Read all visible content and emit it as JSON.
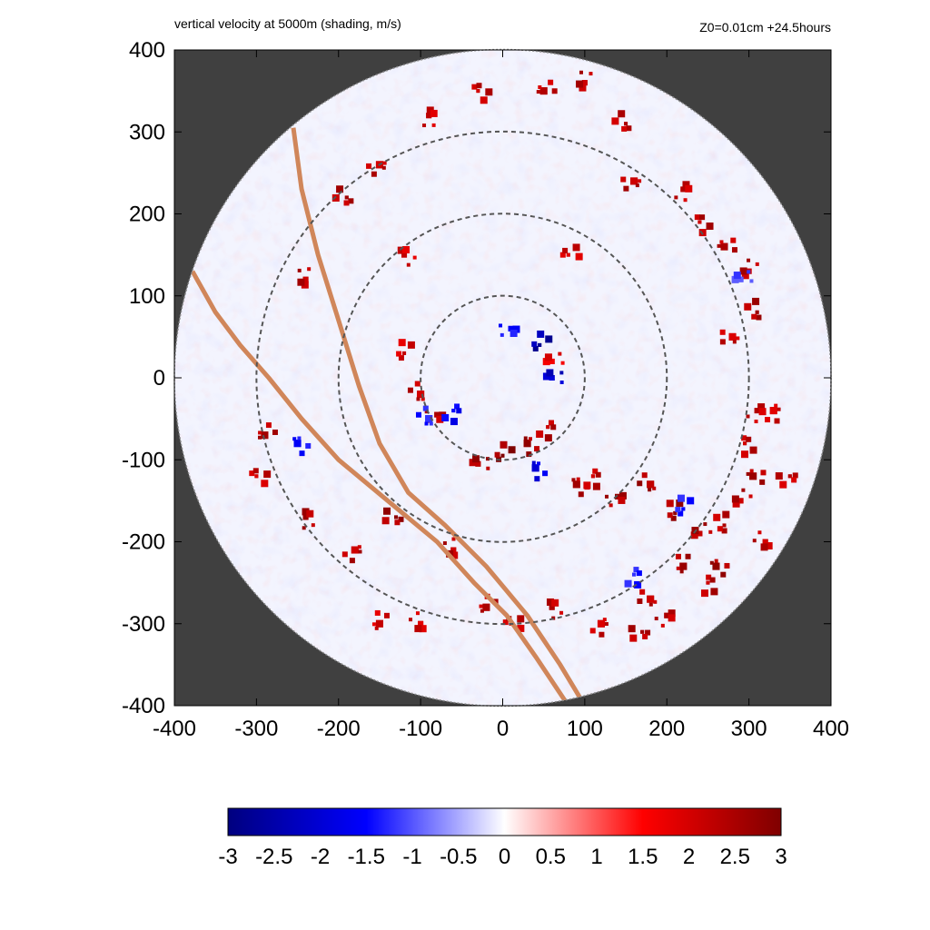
{
  "chart_data": {
    "type": "heatmap",
    "title": "vertical velocity at 5000m (shading, m/s)",
    "subtitle": "Z0=0.01cm  +24.5hours",
    "xlim": [
      -400,
      400
    ],
    "ylim": [
      -400,
      400
    ],
    "x_ticks": [
      "-400",
      "-300",
      "-200",
      "-100",
      "0",
      "100",
      "200",
      "300",
      "400"
    ],
    "y_ticks": [
      "400",
      "300",
      "200",
      "100",
      "0",
      "-100",
      "-200",
      "-300",
      "-400"
    ],
    "x_tick_values": [
      -400,
      -300,
      -200,
      -100,
      0,
      100,
      200,
      300,
      400
    ],
    "y_tick_values": [
      400,
      300,
      200,
      100,
      0,
      -100,
      -200,
      -300,
      -400
    ],
    "domain_radius": 400,
    "range_rings": [
      100,
      200,
      300
    ],
    "colorbar": {
      "min": -3,
      "max": 3,
      "ticks": [
        "-3",
        "-2.5",
        "-2",
        "-1.5",
        "-1",
        "-0.5",
        "0",
        "0.5",
        "1",
        "1.5",
        "2",
        "2.5",
        "3"
      ],
      "tick_values": [
        -3,
        -2.5,
        -2,
        -1.5,
        -1,
        -0.5,
        0,
        0.5,
        1,
        1.5,
        2,
        2.5,
        3
      ],
      "colors": [
        "#00007f",
        "#0000ff",
        "#ffffff",
        "#ff0000",
        "#7f0000"
      ]
    },
    "coastlines": [
      [
        [
          -255,
          305
        ],
        [
          -245,
          230
        ],
        [
          -225,
          150
        ],
        [
          -200,
          70
        ],
        [
          -175,
          -10
        ],
        [
          -150,
          -80
        ],
        [
          -115,
          -140
        ],
        [
          -70,
          -180
        ],
        [
          -20,
          -230
        ],
        [
          30,
          -290
        ],
        [
          70,
          -350
        ],
        [
          100,
          -400
        ]
      ],
      [
        [
          -378,
          130
        ],
        [
          -350,
          80
        ],
        [
          -320,
          40
        ],
        [
          -285,
          0
        ],
        [
          -245,
          -50
        ],
        [
          -200,
          -100
        ],
        [
          -140,
          -150
        ],
        [
          -80,
          -200
        ],
        [
          -35,
          -250
        ],
        [
          5,
          -290
        ],
        [
          40,
          -340
        ],
        [
          80,
          -400
        ]
      ]
    ],
    "rain_patches": [
      [
        0,
        -95,
        3.0
      ],
      [
        -30,
        -105,
        2.8
      ],
      [
        30,
        -80,
        2.8
      ],
      [
        55,
        -60,
        2.6
      ],
      [
        -80,
        -45,
        2.5
      ],
      [
        -100,
        -20,
        2.5
      ],
      [
        -120,
        30,
        2.2
      ],
      [
        60,
        20,
        2.0
      ],
      [
        90,
        -130,
        2.6
      ],
      [
        110,
        -120,
        2.5
      ],
      [
        140,
        -145,
        2.7
      ],
      [
        180,
        -130,
        2.8
      ],
      [
        210,
        -165,
        2.8
      ],
      [
        240,
        -190,
        2.7
      ],
      [
        260,
        -230,
        2.8
      ],
      [
        250,
        -250,
        2.6
      ],
      [
        200,
        -290,
        2.5
      ],
      [
        180,
        -270,
        2.6
      ],
      [
        270,
        -180,
        2.5
      ],
      [
        290,
        -150,
        2.6
      ],
      [
        305,
        -120,
        2.7
      ],
      [
        295,
        -80,
        2.5
      ],
      [
        310,
        -40,
        2.4
      ],
      [
        280,
        50,
        2.4
      ],
      [
        310,
        80,
        2.7
      ],
      [
        300,
        130,
        2.6
      ],
      [
        270,
        160,
        2.5
      ],
      [
        240,
        190,
        2.6
      ],
      [
        220,
        230,
        2.4
      ],
      [
        160,
        240,
        2.6
      ],
      [
        150,
        310,
        2.5
      ],
      [
        100,
        360,
        2.6
      ],
      [
        50,
        350,
        2.4
      ],
      [
        -30,
        350,
        2.5
      ],
      [
        -90,
        320,
        2.3
      ],
      [
        -150,
        260,
        2.5
      ],
      [
        -190,
        220,
        2.6
      ],
      [
        -240,
        120,
        2.6
      ],
      [
        -290,
        -70,
        2.6
      ],
      [
        -300,
        -120,
        2.4
      ],
      [
        -240,
        -170,
        2.7
      ],
      [
        -180,
        -210,
        2.6
      ],
      [
        -130,
        -170,
        2.8
      ],
      [
        -60,
        -210,
        2.6
      ],
      [
        -20,
        -280,
        2.5
      ],
      [
        10,
        -300,
        2.4
      ],
      [
        60,
        -280,
        2.5
      ],
      [
        120,
        -300,
        2.4
      ],
      [
        170,
        -310,
        2.6
      ],
      [
        -100,
        -300,
        2.3
      ],
      [
        -150,
        -300,
        2.2
      ],
      [
        80,
        150,
        2.3
      ],
      [
        -120,
        150,
        2.2
      ],
      [
        330,
        -40,
        2.3
      ],
      [
        350,
        -120,
        2.4
      ],
      [
        320,
        -200,
        2.5
      ],
      [
        220,
        -230,
        2.7
      ]
    ],
    "updraft_negative_patches": [
      [
        45,
        40,
        -2.8
      ],
      [
        60,
        0,
        -2.4
      ],
      [
        40,
        -110,
        -2.0
      ],
      [
        -60,
        -40,
        -1.8
      ],
      [
        10,
        60,
        -1.6
      ],
      [
        -90,
        -50,
        -1.5
      ],
      [
        220,
        -160,
        -1.5
      ],
      [
        290,
        120,
        -1.2
      ],
      [
        -250,
        -80,
        -1.6
      ],
      [
        160,
        -240,
        -1.5
      ]
    ]
  }
}
